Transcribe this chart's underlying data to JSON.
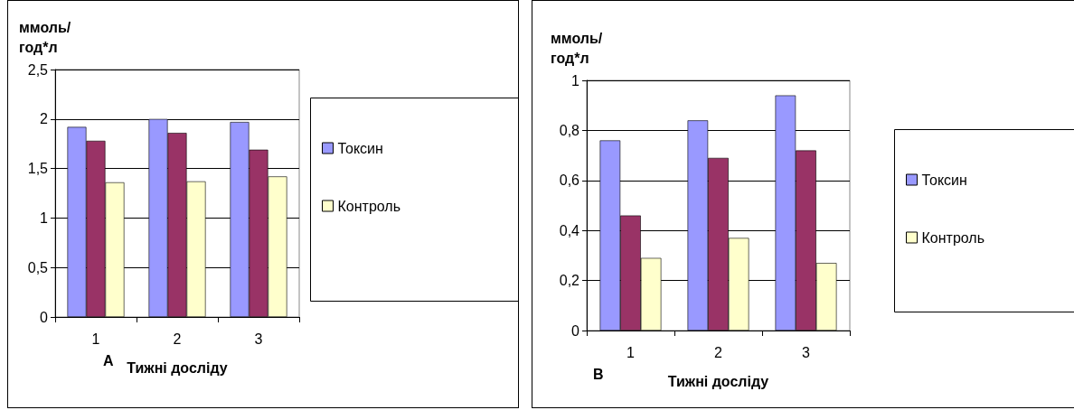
{
  "chart_data": [
    {
      "type": "bar",
      "ylabel": "ммоль/\nгод*л",
      "xlabel": "Тижні досліду",
      "annotations": [
        "А"
      ],
      "categories": [
        "1",
        "2",
        "3"
      ],
      "series": [
        {
          "name": "Токсин",
          "color": "#9999ff",
          "values": [
            1.92,
            2.0,
            1.97
          ]
        },
        {
          "color": "#993366",
          "values": [
            1.78,
            1.86,
            1.69
          ]
        },
        {
          "name": "Контроль",
          "color": "#ffffcc",
          "values": [
            1.36,
            1.37,
            1.42
          ]
        }
      ],
      "ylim": [
        0,
        2.5
      ],
      "yticks": [
        0,
        {
          "value": 0.5,
          "label": "0,5"
        },
        1,
        {
          "value": 1.5,
          "label": "1,5"
        },
        2,
        {
          "value": 2.5,
          "label": "2,5"
        }
      ],
      "grid": "y",
      "legend": "right"
    },
    {
      "type": "bar",
      "ylabel": "ммоль/\nгод*л",
      "xlabel": "Тижні досліду",
      "annotations": [
        "В"
      ],
      "categories": [
        "1",
        "2",
        "3"
      ],
      "series": [
        {
          "name": "Токсин",
          "color": "#9999ff",
          "values": [
            0.76,
            0.84,
            0.94
          ]
        },
        {
          "color": "#993366",
          "values": [
            0.46,
            0.69,
            0.72
          ]
        },
        {
          "name": "Контроль",
          "color": "#ffffcc",
          "values": [
            0.29,
            0.37,
            0.27
          ]
        }
      ],
      "ylim": [
        0,
        1
      ],
      "yticks": [
        0,
        {
          "value": 0.2,
          "label": "0,2"
        },
        {
          "value": 0.4,
          "label": "0,4"
        },
        {
          "value": 0.6,
          "label": "0,6"
        },
        {
          "value": 0.8,
          "label": "0,8"
        },
        1
      ],
      "grid": "y",
      "legend": "right"
    }
  ]
}
